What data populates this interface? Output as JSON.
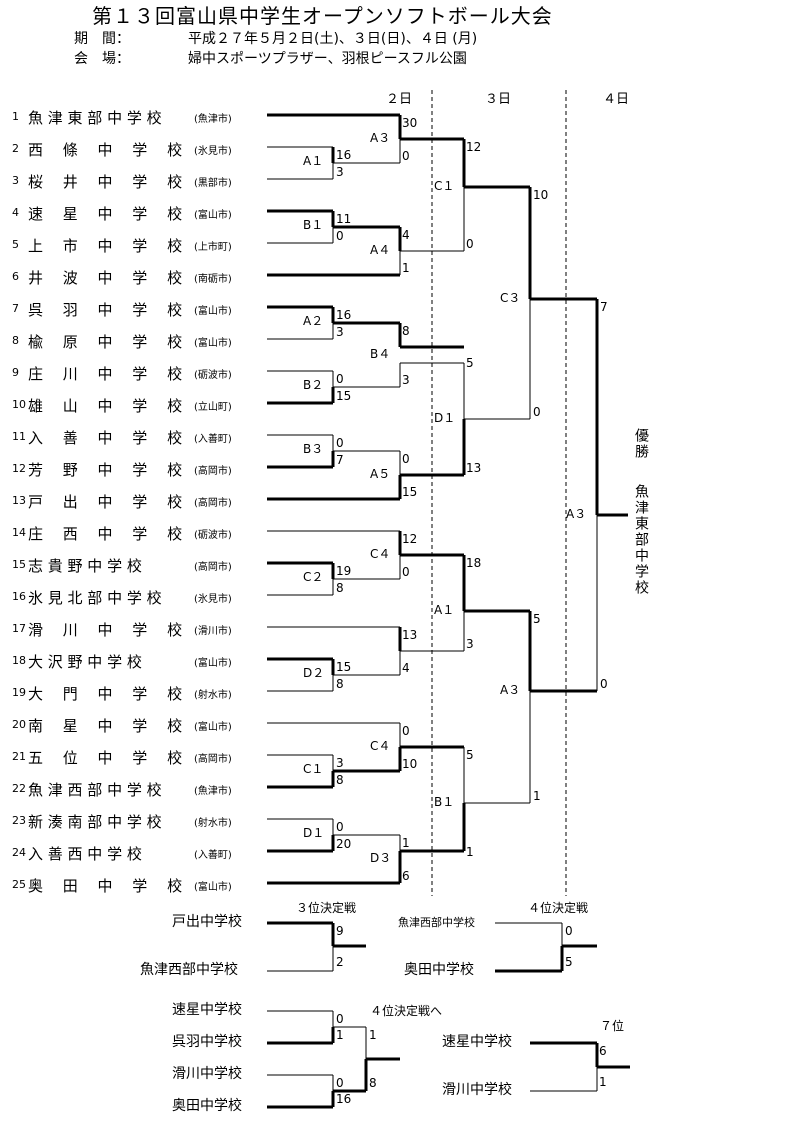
{
  "title": "第１３回富山県中学生オープンソフトボール大会",
  "period_label": "期　間：",
  "period_value": "平成２７年５月２日(土)、３日(日)、４日 (月)",
  "venue_label": "会　場：",
  "venue_value": "婦中スポーツプラザー、羽根ピースフル公園",
  "days": [
    "２日",
    "３日",
    "４日"
  ],
  "teams": [
    {
      "num": "1",
      "name": "魚 津 東 部 中 学 校",
      "city": "(魚津市)"
    },
    {
      "num": "2",
      "name": "西　 條 　中　 学　 校",
      "city": "(氷見市)"
    },
    {
      "num": "3",
      "name": "桜　 井 　中　 学　 校",
      "city": "(黒部市)"
    },
    {
      "num": "4",
      "name": "速　 星 　中　 学　 校",
      "city": "(富山市)"
    },
    {
      "num": "5",
      "name": "上　 市 　中　 学　 校",
      "city": "(上市町)"
    },
    {
      "num": "6",
      "name": "井　 波 　中　 学　 校",
      "city": "(南砺市)"
    },
    {
      "num": "7",
      "name": "呉　 羽 　中　 学　 校",
      "city": "(富山市)"
    },
    {
      "num": "8",
      "name": "楡　 原 　中　 学　 校",
      "city": "(富山市)"
    },
    {
      "num": "9",
      "name": "庄　 川 　中　 学　 校",
      "city": "(砺波市)"
    },
    {
      "num": "10",
      "name": "雄　 山 　中　 学　 校",
      "city": "(立山町)"
    },
    {
      "num": "11",
      "name": "入　 善 　中　 学　 校",
      "city": "(入善町)"
    },
    {
      "num": "12",
      "name": "芳　 野 　中　 学　 校",
      "city": "(高岡市)"
    },
    {
      "num": "13",
      "name": "戸　 出 　中　 学　 校",
      "city": "(高岡市)"
    },
    {
      "num": "14",
      "name": "庄　 西 　中　 学　 校",
      "city": "(砺波市)"
    },
    {
      "num": "15",
      "name": "志 貴 野 中 学 校",
      "city": "(高岡市)"
    },
    {
      "num": "16",
      "name": "氷 見 北 部 中 学 校",
      "city": "(氷見市)"
    },
    {
      "num": "17",
      "name": "滑　 川 　中　 学　 校",
      "city": "(滑川市)"
    },
    {
      "num": "18",
      "name": "大 沢 野 中 学 校",
      "city": "(富山市)"
    },
    {
      "num": "19",
      "name": "大　 門 　中　 学　 校",
      "city": "(射水市)"
    },
    {
      "num": "20",
      "name": "南　 星 　中　 学　 校",
      "city": "(富山市)"
    },
    {
      "num": "21",
      "name": "五　 位 　中　 学　 校",
      "city": "(高岡市)"
    },
    {
      "num": "22",
      "name": "魚 津 西 部 中 学 校",
      "city": "(魚津市)"
    },
    {
      "num": "23",
      "name": "新 湊 南 部 中 学 校",
      "city": "(射水市)"
    },
    {
      "num": "24",
      "name": "入 善 西 中 学 校",
      "city": "(入善町)"
    },
    {
      "num": "25",
      "name": "奥　 田 　中　 学　 校",
      "city": "(富山市)"
    }
  ],
  "r1": {
    "a1": {
      "label": "A１",
      "top": "16",
      "bottom": "3"
    },
    "b1": {
      "label": "B１",
      "top": "11",
      "bottom": "0"
    },
    "a2": {
      "label": "A２",
      "top": "16",
      "bottom": "3"
    },
    "b2": {
      "label": "B２",
      "top": "0",
      "bottom": "15"
    },
    "b3": {
      "label": "B３",
      "top": "0",
      "bottom": "7"
    },
    "c2": {
      "label": "C２",
      "top": "19",
      "bottom": "8"
    },
    "d2": {
      "label": "D２",
      "top": "15",
      "bottom": "8"
    },
    "c1": {
      "label": "C１",
      "top": "3",
      "bottom": "8"
    },
    "d1": {
      "label": "D１",
      "top": "0",
      "bottom": "20"
    }
  },
  "r2": {
    "a3": {
      "label": "A３",
      "top": "30",
      "bottom": "0"
    },
    "a4": {
      "label": "A４",
      "top": "4",
      "bottom": "1"
    },
    "b4": {
      "label": "B４",
      "top": "8",
      "bottom": "3"
    },
    "a5": {
      "label": "A５",
      "top": "0",
      "bottom": "15"
    },
    "c4a": {
      "label": "C４",
      "top": "12",
      "bottom": "0"
    },
    "m17": {
      "top": "13",
      "bottom": "4"
    },
    "c4b": {
      "label": "C４",
      "top": "0",
      "bottom": "10"
    },
    "d3": {
      "label": "D３",
      "top": "1",
      "bottom": "6"
    }
  },
  "r3": {
    "c1": {
      "label": "C１",
      "top": "12",
      "bottom": "0"
    },
    "d1": {
      "label": "D１",
      "top": "5",
      "bottom": "13"
    },
    "a1": {
      "label": "A１",
      "top": "18",
      "bottom": "3"
    },
    "b1": {
      "label": "B１",
      "top": "5",
      "bottom": "1"
    }
  },
  "r4": {
    "c3": {
      "label": "C３",
      "top": "10",
      "bottom": "0"
    },
    "a3": {
      "label": "A３",
      "top": "5",
      "bottom": "1"
    }
  },
  "final": {
    "label": "A３",
    "top": "7",
    "bottom": "0"
  },
  "champion_label": "優勝",
  "champion_name": "魚津東部中学校",
  "third_place": {
    "title": "３位決定戦",
    "team_a": "戸出中学校",
    "score_a": "9",
    "team_b": "魚津西部中学校",
    "score_b": "2"
  },
  "fourth_place": {
    "title": "４位決定戦",
    "team_a": "魚津西部中学校",
    "score_a": "0",
    "team_b": "奥田中学校",
    "score_b": "5"
  },
  "to_fourth": {
    "title": "４位決定戦へ",
    "t1": "速星中学校",
    "s1": "0",
    "t2": "呉羽中学校",
    "s2": "1",
    "t3": "滑川中学校",
    "s3": "0",
    "t4": "奥田中学校",
    "s4": "16",
    "m1": "1",
    "m2": "8"
  },
  "seventh_place": {
    "title": "７位",
    "team_a": "速星中学校",
    "score_a": "6",
    "team_b": "滑川中学校",
    "score_b": "1"
  }
}
